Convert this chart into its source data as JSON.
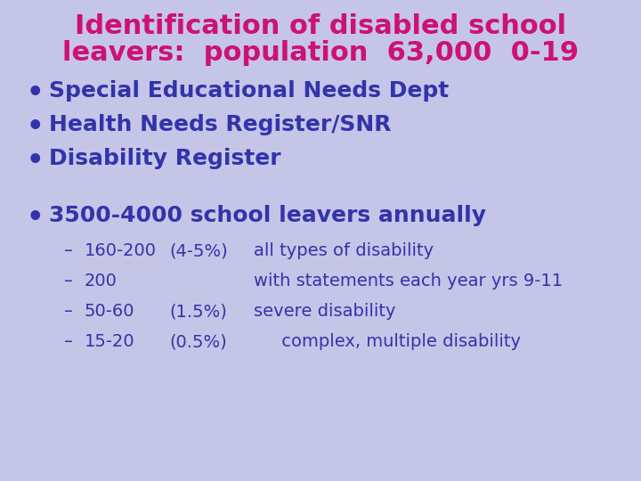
{
  "background_color": "#c5c5e8",
  "title_line1": "Identification of disabled school",
  "title_line2": "leavers:  population  63,000  0-19",
  "title_color": "#cc1177",
  "bullet_color": "#3333aa",
  "bullet_items": [
    "Special Educational Needs Dept",
    "Health Needs Register/SNR",
    "Disability Register"
  ],
  "bold_bullet": "3500-4000 school leavers annually",
  "sub_items": [
    [
      "160-200",
      "(4-5%)",
      "all types of disability"
    ],
    [
      "200",
      "",
      "with statements each year yrs 9-11"
    ],
    [
      "50-60",
      "(1.5%)",
      "severe disability"
    ],
    [
      "15-20",
      "(0.5%)",
      "     complex, multiple disability"
    ]
  ],
  "title_fontsize": 22,
  "bullet_fontsize": 18,
  "bold_bullet_fontsize": 18,
  "sub_fontsize": 14
}
